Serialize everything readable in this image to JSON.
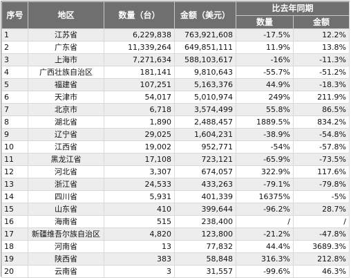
{
  "header": {
    "rank": "序号",
    "region": "地区",
    "quantity": "数量（台）",
    "amount": "金额（美元）",
    "yoy": "比去年同期",
    "yoy_quantity": "数量",
    "yoy_amount": "金额"
  },
  "rows": [
    {
      "rank": "1",
      "region": "江苏省",
      "quantity": "6,229,838",
      "amount": "763,921,608",
      "yoy_quantity": "-17.5%",
      "yoy_amount": "12.2%"
    },
    {
      "rank": "2",
      "region": "广东省",
      "quantity": "11,339,264",
      "amount": "649,851,111",
      "yoy_quantity": "11.9%",
      "yoy_amount": "13.8%"
    },
    {
      "rank": "3",
      "region": "上海市",
      "quantity": "7,271,634",
      "amount": "588,103,617",
      "yoy_quantity": "-16%",
      "yoy_amount": "-11.3%"
    },
    {
      "rank": "4",
      "region": "广西壮族自治区",
      "quantity": "181,141",
      "amount": "9,810,643",
      "yoy_quantity": "-55.7%",
      "yoy_amount": "-51.2%"
    },
    {
      "rank": "5",
      "region": "福建省",
      "quantity": "107,251",
      "amount": "5,163,376",
      "yoy_quantity": "44.9%",
      "yoy_amount": "-18.3%"
    },
    {
      "rank": "6",
      "region": "天津市",
      "quantity": "54,017",
      "amount": "5,010,974",
      "yoy_quantity": "249%",
      "yoy_amount": "211.9%"
    },
    {
      "rank": "7",
      "region": "北京市",
      "quantity": "6,718",
      "amount": "3,574,499",
      "yoy_quantity": "55.8%",
      "yoy_amount": "86.5%"
    },
    {
      "rank": "8",
      "region": "湖北省",
      "quantity": "1,890",
      "amount": "2,488,457",
      "yoy_quantity": "1889.5%",
      "yoy_amount": "834.2%"
    },
    {
      "rank": "9",
      "region": "辽宁省",
      "quantity": "29,025",
      "amount": "1,604,231",
      "yoy_quantity": "-38.9%",
      "yoy_amount": "-54.8%"
    },
    {
      "rank": "10",
      "region": "江西省",
      "quantity": "19,002",
      "amount": "952,771",
      "yoy_quantity": "-54%",
      "yoy_amount": "-57.8%"
    },
    {
      "rank": "11",
      "region": "黑龙江省",
      "quantity": "17,108",
      "amount": "723,121",
      "yoy_quantity": "-65.9%",
      "yoy_amount": "-73.5%"
    },
    {
      "rank": "12",
      "region": "河北省",
      "quantity": "3,307",
      "amount": "674,057",
      "yoy_quantity": "322.9%",
      "yoy_amount": "117.6%"
    },
    {
      "rank": "13",
      "region": "浙江省",
      "quantity": "24,533",
      "amount": "433,263",
      "yoy_quantity": "-79.1%",
      "yoy_amount": "-79.8%"
    },
    {
      "rank": "14",
      "region": "四川省",
      "quantity": "5,931",
      "amount": "401,339",
      "yoy_quantity": "16375%",
      "yoy_amount": "-5%"
    },
    {
      "rank": "15",
      "region": "山东省",
      "quantity": "410",
      "amount": "399,644",
      "yoy_quantity": "-96.2%",
      "yoy_amount": "28.7%"
    },
    {
      "rank": "16",
      "region": "海南省",
      "quantity": "515",
      "amount": "238,400",
      "yoy_quantity": "/",
      "yoy_amount": "/"
    },
    {
      "rank": "17",
      "region": "新疆维吾尔族自治区",
      "quantity": "4,820",
      "amount": "123,800",
      "yoy_quantity": "-21.2%",
      "yoy_amount": "-47.8%"
    },
    {
      "rank": "18",
      "region": "河南省",
      "quantity": "13",
      "amount": "77,832",
      "yoy_quantity": "44.4%",
      "yoy_amount": "3689.3%"
    },
    {
      "rank": "19",
      "region": "陕西省",
      "quantity": "383",
      "amount": "58,848",
      "yoy_quantity": "316.3%",
      "yoy_amount": "212.8%"
    },
    {
      "rank": "20",
      "region": "云南省",
      "quantity": "3",
      "amount": "31,557",
      "yoy_quantity": "-99.6%",
      "yoy_amount": "46.3%"
    }
  ]
}
